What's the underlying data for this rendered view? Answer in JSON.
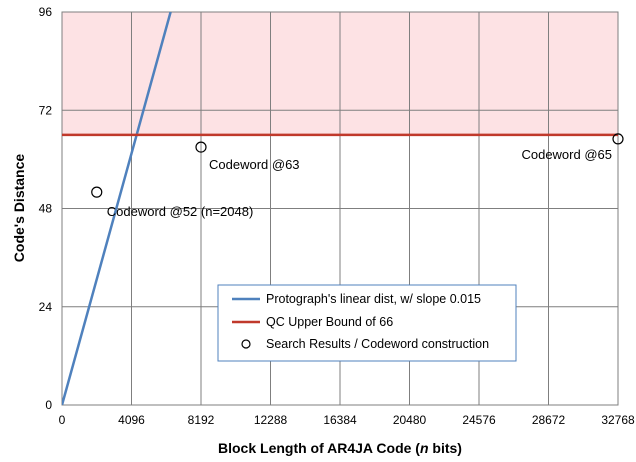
{
  "chart_data": {
    "type": "line",
    "xlabel_parts": [
      "Block Length of AR4JA Code (",
      "n",
      " bits)"
    ],
    "ylabel": "Code's Distance",
    "xlim": [
      0,
      32768
    ],
    "ylim": [
      0,
      96
    ],
    "xticks": [
      0,
      4096,
      8192,
      12288,
      16384,
      20480,
      24576,
      28672,
      32768
    ],
    "xtick_labels": [
      "0",
      "4096",
      "8192",
      "12288",
      "16384",
      "20480",
      "24576",
      "28672",
      "32768"
    ],
    "yticks": [
      0,
      24,
      48,
      72,
      96
    ],
    "ytick_labels": [
      "0",
      "24",
      "48",
      "72",
      "96"
    ],
    "grid": true,
    "shaded_region": {
      "y_from": 66,
      "y_to": 96,
      "color": "#fde2e4"
    },
    "series": [
      {
        "name": "Protograph's linear dist, w/ slope 0.015",
        "kind": "line",
        "color": "#4f81bd",
        "x": [
          0,
          6400
        ],
        "y": [
          0,
          96
        ]
      },
      {
        "name": "QC Upper Bound of 66",
        "kind": "line",
        "color": "#c0392b",
        "x": [
          0,
          32768
        ],
        "y": [
          66,
          66
        ]
      },
      {
        "name": "Search Results / Codeword construction",
        "kind": "scatter",
        "color": "#000000",
        "x": [
          2048,
          8192,
          32768
        ],
        "y": [
          52,
          63,
          65
        ]
      }
    ],
    "annotations": [
      {
        "text": "Codeword @52 (n=2048)",
        "x": 2048,
        "y": 52
      },
      {
        "text": "Codeword @63",
        "x": 8192,
        "y": 63
      },
      {
        "text": "Codeword @65",
        "x": 32768,
        "y": 65
      }
    ],
    "legend_position": "lower-center"
  }
}
